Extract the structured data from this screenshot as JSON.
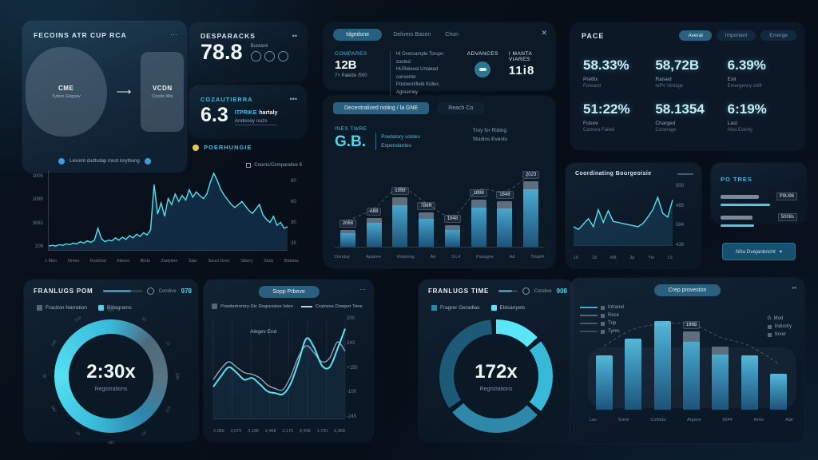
{
  "colors": {
    "accent": "#4fd4ea",
    "line": "#55e0f2",
    "pale_line": "#b8d4e4",
    "panel": "#0b1826",
    "bar_top": "#57b8d8",
    "bar_bottom": "#1d5379"
  },
  "flow": {
    "title": "FECOINS ATR CUP RCA",
    "menu": "⋯",
    "circle_title": "CME",
    "circle_sub": "Tutoro Grigsov",
    "rect_title": "VCDN",
    "rect_sub": "Coodo Mix",
    "footer": "Levomt dudtsdap moot lorytbong"
  },
  "designations": {
    "title": "DESPARACKS",
    "menu": "••",
    "value": "78.8",
    "icons_label": "Bustané"
  },
  "cozau": {
    "title": "COZAUTIERRA",
    "menu": "•••",
    "value": "6.3",
    "tag": "ITPRIKE",
    "tag_bold": "hartaly",
    "sub": "Andesey ouzs"
  },
  "poer": {
    "label": "POERHUNGIE"
  },
  "compare": {
    "tabs": [
      "Idgedone",
      "Delivers Basen",
      "Chon"
    ],
    "close": "✕",
    "col1_label": "COMPARES",
    "col1_value": "12B",
    "col1_sub": "7+ Palette /500",
    "desc": [
      "Hi Oversample Torups zooted",
      "HURelevel Untaked converter",
      "Postworkfield Kidles Agreemey"
    ],
    "advances_label": "ADVANCES",
    "col4_label": "I MANTA VIARES",
    "col4_value": "11i8"
  },
  "invest": {
    "tabs": [
      "Decentralized noting / la GNE",
      "Reach Co"
    ],
    "label": "INES TWRE",
    "value": "G.B.",
    "list": [
      "Predatory soldes",
      "Expendantes"
    ],
    "note": [
      "Troy for Riding",
      "Studios Events"
    ]
  },
  "pace": {
    "title": "PACE",
    "pills": [
      "Averal",
      "Important",
      "Emerge"
    ],
    "stats": [
      {
        "value": "58.33%",
        "l1": "Pretfix",
        "l2": "Forward"
      },
      {
        "value": "58,72B",
        "l1": "Raised",
        "l2": "mPV Vintage"
      },
      {
        "value": "6.39%",
        "l1": "Exit",
        "l2": "Emergency shift"
      },
      {
        "value": "51:22%",
        "l1": "Future",
        "l2": "Camera Failed"
      },
      {
        "value": "58.1354",
        "l1": "Charged",
        "l2": "Coverage"
      },
      {
        "value": "6:19%",
        "l1": "Last",
        "l2": "Also Evenly"
      }
    ]
  },
  "main_chart_legend": "Counts/Comparative 6",
  "coord_title": "Coordinating Bourgeoisie",
  "posities": {
    "title": "PO TRES",
    "rows": [
      {
        "label": "P9U96"
      },
      {
        "label": "5008s"
      }
    ],
    "button_label": "N0a Dvejanbricht",
    "button_caret": "▾"
  },
  "donut1": {
    "title": "FRANLUGS POM",
    "slider_label": "Condive",
    "slider_value": "978",
    "legend": [
      "Fraction Narration",
      "Bitlagrams"
    ],
    "center": "2:30x",
    "center_sub": "Registrations"
  },
  "wave_panel": {
    "pill": "Sopp Prbeve",
    "menu": "⋯",
    "legend": [
      "Powderiromry-Stc Regressive Isten",
      "Crainese Dowper Tone"
    ],
    "annotation": "Alegev End"
  },
  "donut2": {
    "title": "FRANLUGS TIME",
    "slider_label": "Condive",
    "slider_value": "908",
    "legend": [
      "Fragrer Geradlas",
      "Eldsanyets"
    ],
    "center": "172x",
    "center_sub": "Registrations"
  },
  "bars2_panel": {
    "pill": "Crep proveston",
    "menu": "••",
    "legend_left": [
      "Intranel",
      "Rece",
      "Trip",
      "Tyres"
    ],
    "legend_right_title": "G. Mod",
    "legend_right": [
      "Industry",
      "Srver"
    ]
  },
  "chart_data": [
    {
      "id": "main-line",
      "type": "area",
      "color": "#55e0f2",
      "fill": "rgba(25,70,105,0.5)",
      "legend": "Counts/Comparative 6",
      "yticks_left": [
        "1005",
        "1085",
        "3081",
        "209"
      ],
      "yticks_right": [
        "80",
        "60",
        "30",
        "25"
      ],
      "xticks": [
        "1 Mon",
        "Omes",
        "Koshind",
        "Kibero",
        "Biots",
        "Zadyime",
        "Stav",
        "Souci Grev",
        "Sibery",
        "Stoly",
        "Bidstes"
      ],
      "values": [
        2,
        3,
        2,
        4,
        3,
        5,
        4,
        6,
        5,
        8,
        6,
        9,
        7,
        10,
        26,
        12,
        8,
        10,
        9,
        13,
        10,
        14,
        11,
        16,
        13,
        18,
        15,
        20,
        17,
        24,
        85,
        45,
        60,
        42,
        66,
        58,
        72,
        62,
        70,
        64,
        78,
        68,
        75,
        70,
        66,
        72,
        88,
        100,
        90,
        78,
        70,
        64,
        58,
        54,
        58,
        62,
        56,
        50,
        46,
        52,
        58,
        44,
        38,
        34,
        42,
        30,
        34,
        26,
        28
      ]
    },
    {
      "id": "invest-bars",
      "type": "bar",
      "dash_overlay": true,
      "categories": [
        "Donday",
        "Apatree",
        "Ropining",
        "Ad",
        "3-L4",
        "Pasagne",
        "Ad",
        "Totad4"
      ],
      "values": [
        22,
        38,
        65,
        45,
        28,
        62,
        60,
        100
      ],
      "badges": [
        "2068",
        "A88",
        "1998",
        "786R",
        "1948",
        "1898",
        "1848",
        "2023"
      ],
      "caps": [
        20,
        18,
        16,
        18,
        20,
        16,
        16,
        12
      ]
    },
    {
      "id": "coord-line",
      "type": "area",
      "color": "#55e0f2",
      "fill": "rgba(40,110,150,0.28)",
      "yticks_right": [
        "500",
        "485",
        "584",
        "438"
      ],
      "xticks": [
        "16",
        "18",
        "M8",
        "3p",
        "Yie",
        "L5"
      ],
      "values": [
        30,
        25,
        35,
        45,
        30,
        62,
        38,
        60,
        40,
        38,
        36,
        34,
        32,
        30,
        36,
        48,
        62,
        85,
        55,
        48,
        80
      ]
    },
    {
      "id": "donut-230",
      "type": "donut",
      "from": "-90deg",
      "smooth": true,
      "stops": [
        [
          "#55e0f2",
          0
        ],
        [
          "#38b9da",
          25
        ],
        [
          "#4d6a7c",
          38
        ],
        [
          "#5a7280",
          50
        ],
        [
          "#2e86ac",
          64
        ],
        [
          "#3cc0de",
          82
        ],
        [
          "#55e0f2",
          100
        ]
      ],
      "ticks": [
        "420",
        "92",
        "13",
        "225",
        "470",
        "83",
        "182",
        "64",
        "299",
        "45",
        "166",
        "318"
      ]
    },
    {
      "id": "wave",
      "type": "wave",
      "yticks": [
        "200",
        "243",
        "+150",
        "-100",
        "-245"
      ],
      "xticks": [
        "2,089",
        "2,072",
        "3,186",
        "2,468",
        "2,170",
        "9,408",
        "1,700",
        "0,968"
      ],
      "series": [
        {
          "name": "Powderiromry-Stc Regressive Isten",
          "color": "#b8d4e4",
          "values": [
            38,
            50,
            58,
            52,
            46,
            44,
            40,
            32,
            28,
            27,
            42,
            64,
            76,
            68,
            58,
            62,
            80,
            70
          ]
        },
        {
          "name": "Crainese Dowper Tone",
          "color": "#58e4f5",
          "values": [
            30,
            42,
            52,
            46,
            38,
            40,
            33,
            25,
            23,
            22,
            34,
            58,
            84,
            74,
            54,
            52,
            72,
            95
          ]
        }
      ]
    },
    {
      "id": "donut-172",
      "type": "donut",
      "from": "0deg",
      "segments": [
        {
          "color": "#5ae6f8",
          "pct": 13
        },
        {
          "color": "#0b1826",
          "pct": 1.5
        },
        {
          "color": "#39b9da",
          "pct": 21
        },
        {
          "color": "#0b1826",
          "pct": 1.5
        },
        {
          "color": "#2e88aa",
          "pct": 27
        },
        {
          "color": "#0b1826",
          "pct": 1.5
        },
        {
          "color": "#1d5a78",
          "pct": 33
        },
        {
          "color": "#0b1826",
          "pct": 1.5
        }
      ]
    },
    {
      "id": "bars2",
      "type": "bar",
      "dash_overlay": true,
      "categories": [
        "Lav",
        "Svine",
        "Corkida",
        "Argeve",
        "6044",
        "Avrte",
        "Ade"
      ],
      "values": [
        61,
        80,
        100,
        93,
        71,
        61,
        41
      ],
      "badges": [
        null,
        null,
        null,
        "1968",
        null,
        null,
        null
      ],
      "caps": [
        0,
        0,
        0,
        13,
        12,
        0,
        0
      ]
    }
  ]
}
